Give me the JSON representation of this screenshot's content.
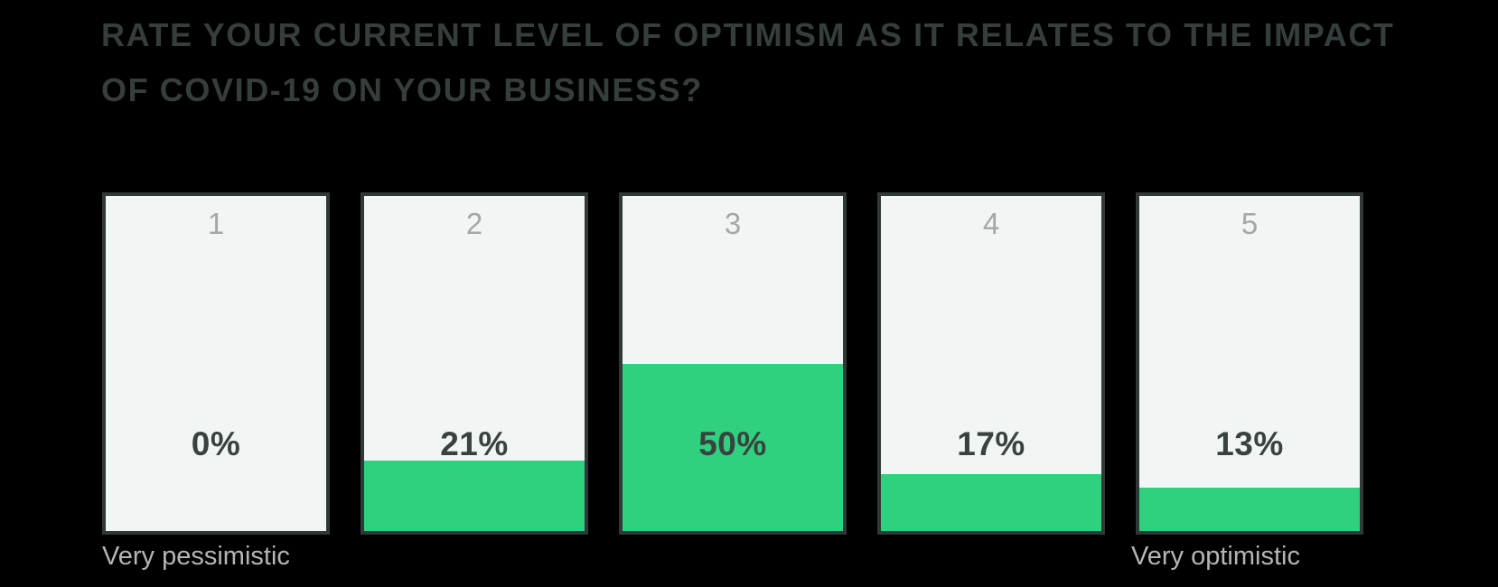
{
  "title": {
    "line1": "RATE YOUR CURRENT LEVEL OF OPTIMISM AS IT RELATES TO THE IMPACT",
    "line2": "OF COVID-19 ON YOUR BUSINESS?"
  },
  "chart_data": {
    "type": "bar",
    "title": "Rate your current level of optimism as it relates to the impact of COVID-19 on your business?",
    "categories": [
      "1",
      "2",
      "3",
      "4",
      "5"
    ],
    "values": [
      0,
      21,
      50,
      17,
      13
    ],
    "labels": [
      "0%",
      "21%",
      "50%",
      "17%",
      "13%"
    ],
    "ylim": [
      0,
      100
    ],
    "axis_min_label": "Very pessimistic",
    "axis_max_label": "Very optimistic",
    "legend": "none",
    "grid": false
  },
  "colors": {
    "background": "#000000",
    "title_text": "#353e3d",
    "box_background": "#f1f6f4",
    "box_border": "#303838",
    "fill_green": "#30d17e",
    "number_gray": "#a3a7a6",
    "pct_text": "#3a4240",
    "axis_label_gray": "#b3b6b4"
  }
}
